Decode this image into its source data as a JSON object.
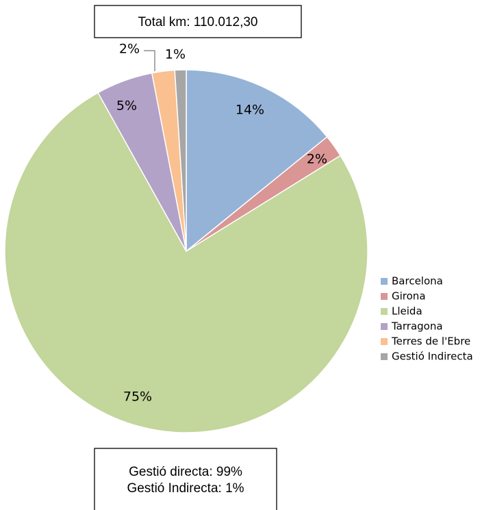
{
  "chart_data": {
    "type": "pie",
    "annotations": [
      "Total km: 110.012,30",
      "Gestió directa: 99%",
      "Gestió Indirecta: 1%"
    ],
    "categories": [
      "Barcelona",
      "Girona",
      "Lleida",
      "Tarragona",
      "Terres de l'Ebre",
      "Gestió Indirecta"
    ],
    "values": [
      14,
      2,
      75,
      5,
      2,
      1
    ],
    "value_labels": [
      "14%",
      "2%",
      "75%",
      "5%",
      "2%",
      "1%"
    ],
    "colors": [
      "#95b3d7",
      "#d99694",
      "#c3d69b",
      "#b3a2c7",
      "#fac090",
      "#a6a6a6"
    ],
    "legend": "right"
  }
}
